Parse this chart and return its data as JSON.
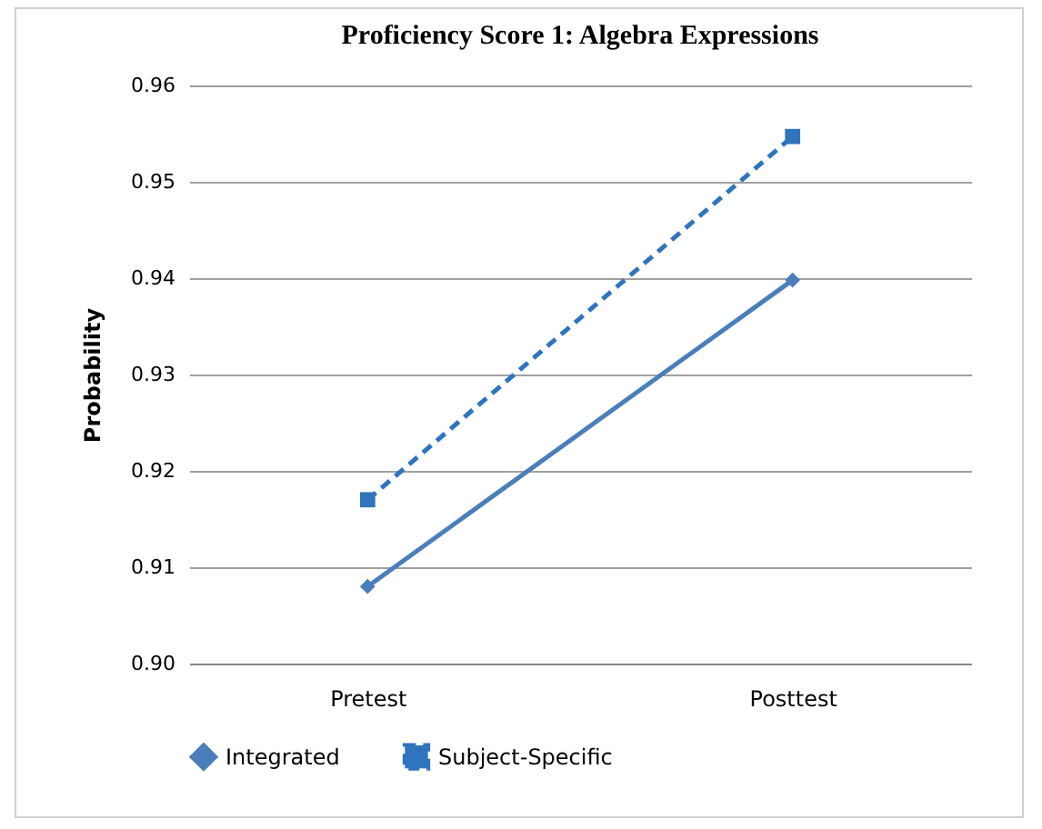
{
  "chart_data": {
    "type": "line",
    "title": "Proficiency Score 1: Algebra Expressions",
    "ylabel": "Probability",
    "categories": [
      "Pretest",
      "Posttest"
    ],
    "series": [
      {
        "name": "Integrated",
        "color": "#4a7ebb",
        "values": [
          0.908,
          0.9398
        ],
        "marker": "diamond",
        "line_style": "solid"
      },
      {
        "name": "Subject-Specific",
        "color": "#2f74bd",
        "values": [
          0.917,
          0.9547
        ],
        "marker": "square",
        "line_style": "dashed"
      }
    ],
    "ylim": [
      0.9,
      0.96
    ],
    "yticks": [
      {
        "value": 0.9,
        "label": "0.90"
      },
      {
        "value": 0.91,
        "label": "0.91"
      },
      {
        "value": 0.92,
        "label": "0.92"
      },
      {
        "value": 0.93,
        "label": "0.93"
      },
      {
        "value": 0.94,
        "label": "0.94"
      },
      {
        "value": 0.95,
        "label": "0.95"
      },
      {
        "value": 0.96,
        "label": "0.96"
      }
    ],
    "grid": "y",
    "legend": "bottom"
  }
}
